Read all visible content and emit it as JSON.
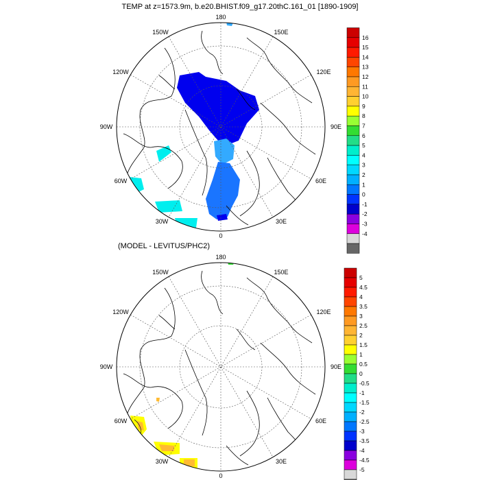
{
  "title": "TEMP at z=1573.9m, b.e20.BHIST.f09_g17.20thC.161_01 [1890-1909]",
  "diff_title": "(MODEL - LEVITUS/PHC2)",
  "lon_labels": {
    "l180": "180",
    "l150W": "150W",
    "l150E": "150E",
    "l120W": "120W",
    "l120E": "120E",
    "l90W": "90W",
    "l90E": "90E",
    "l60W": "60W",
    "l60E": "60E",
    "l30W": "30W",
    "l30E": "30E",
    "l0": "0"
  },
  "colorbar_top": {
    "labels": [
      "16",
      "15",
      "14",
      "13",
      "12",
      "11",
      "10",
      "9",
      "8",
      "7",
      "6",
      "5",
      "4",
      "3",
      "2",
      "1",
      "0",
      "-1",
      "-2",
      "-3",
      "-4"
    ],
    "colors": [
      "#cc0000",
      "#e60000",
      "#ff1a00",
      "#ff4500",
      "#ff7800",
      "#ff9a22",
      "#ffb533",
      "#ffd030",
      "#ffff00",
      "#99ff33",
      "#33dd33",
      "#22dd88",
      "#00eecc",
      "#00ffff",
      "#00d8ff",
      "#00b0ff",
      "#0077ff",
      "#0033ff",
      "#0000cc",
      "#8a00e0",
      "#dd00dd",
      "#d8d8d8",
      "#666666"
    ]
  },
  "colorbar_bottom": {
    "labels": [
      "5",
      "4.5",
      "4",
      "3.5",
      "3",
      "2.5",
      "2",
      "1.5",
      "1",
      "0.5",
      "0",
      "-0.5",
      "-1",
      "-1.5",
      "-2",
      "-2.5",
      "-3",
      "-3.5",
      "-4",
      "-4.5",
      "-5"
    ],
    "colors": [
      "#cc0000",
      "#e60000",
      "#ff1a00",
      "#ff4500",
      "#ff7800",
      "#ff9a22",
      "#ffb533",
      "#ffd030",
      "#ffff00",
      "#99ff33",
      "#33dd33",
      "#22dd88",
      "#00eecc",
      "#00ffff",
      "#00d8ff",
      "#00b0ff",
      "#0077ff",
      "#0033ff",
      "#0000cc",
      "#8a00e0",
      "#dd00dd",
      "#d8d8d8",
      "#666666"
    ]
  },
  "field_colors": {
    "deep_blue": "#0000ee",
    "mid_blue": "#1a75ff",
    "light_blue": "#33aaff",
    "cyan": "#00eeee",
    "yellow": "#ffff00",
    "orange": "#ffbb33",
    "green": "#33dd33",
    "light_cyan": "#33ffee"
  }
}
